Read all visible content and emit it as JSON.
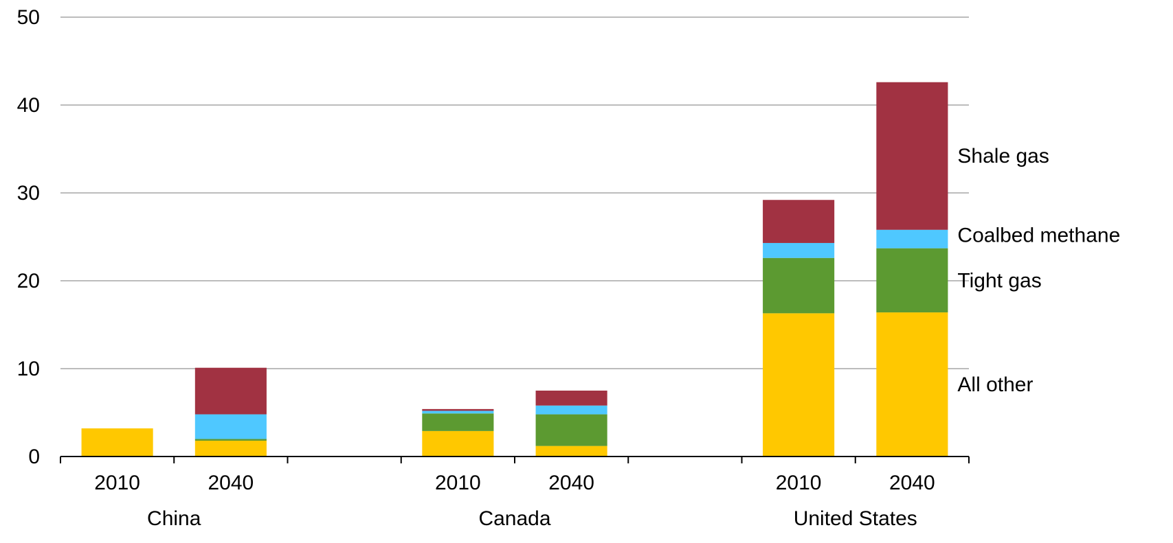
{
  "chart_data": {
    "type": "bar",
    "stacked": true,
    "title": "",
    "xlabel": "",
    "ylabel": "",
    "ylim": [
      0,
      50
    ],
    "yticks": [
      "0",
      "10",
      "20",
      "30",
      "40",
      "50"
    ],
    "grid": true,
    "groups": [
      {
        "name": "China",
        "categories": [
          "2010",
          "2040"
        ]
      },
      {
        "name": "Canada",
        "categories": [
          "2010",
          "2040"
        ]
      },
      {
        "name": "United States",
        "categories": [
          "2010",
          "2040"
        ]
      }
    ],
    "series": [
      {
        "name": "All other",
        "color": "#FFC800",
        "values": [
          3.2,
          1.8,
          2.9,
          1.2,
          16.3,
          16.4
        ]
      },
      {
        "name": "Tight gas",
        "color": "#5C9A31",
        "values": [
          0.0,
          0.2,
          2.0,
          3.6,
          6.3,
          7.3
        ]
      },
      {
        "name": "Coalbed methane",
        "color": "#4FC8FF",
        "values": [
          0.0,
          2.8,
          0.3,
          1.0,
          1.7,
          2.1
        ]
      },
      {
        "name": "Shale gas",
        "color": "#A13242",
        "values": [
          0.0,
          5.3,
          0.2,
          1.7,
          4.9,
          16.8
        ]
      }
    ]
  }
}
